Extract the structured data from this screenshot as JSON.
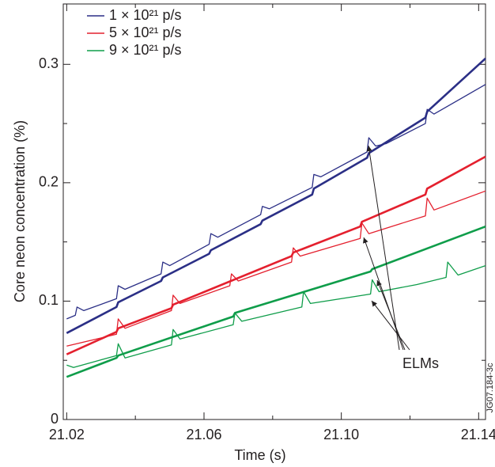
{
  "chart_data": {
    "type": "line",
    "x_label": "Time (s)",
    "y_label": "Core neon concentration (%)",
    "annotation": "ELMs",
    "figure_id": "JG07.184-3c",
    "xlim": [
      21.019,
      21.142
    ],
    "ylim": [
      0,
      0.351
    ],
    "xticks": [
      21.02,
      21.06,
      {
        "value": 21.1,
        "label": "21.10"
      },
      21.14
    ],
    "xminorticks": [
      21.04,
      21.08,
      21.12
    ],
    "yticks": [
      0,
      0.1,
      0.2,
      0.3
    ],
    "yminorticks": [
      0.05,
      0.15,
      0.25
    ],
    "legend": "upper left",
    "series": [
      {
        "name": "1 × 10²¹ p/s",
        "color": "#2b2f86",
        "width": 1.3,
        "x": [
          21.02,
          21.0225,
          21.023,
          21.025,
          21.0345,
          21.035,
          21.037,
          21.0475,
          21.048,
          21.05,
          21.0615,
          21.062,
          21.064,
          21.0765,
          21.077,
          21.079,
          21.0915,
          21.092,
          21.094,
          21.1075,
          21.108,
          21.11,
          21.113,
          21.1245,
          21.125,
          21.127,
          21.142
        ],
        "values": [
          0.085,
          0.088,
          0.095,
          0.092,
          0.102,
          0.113,
          0.11,
          0.123,
          0.133,
          0.13,
          0.148,
          0.157,
          0.154,
          0.173,
          0.18,
          0.178,
          0.196,
          0.207,
          0.205,
          0.226,
          0.238,
          0.231,
          0.233,
          0.25,
          0.262,
          0.258,
          0.283
        ]
      },
      {
        "color": "#2b2f86",
        "width": 2.6,
        "x": [
          21.02,
          21.0345,
          21.035,
          21.0475,
          21.048,
          21.0615,
          21.062,
          21.0765,
          21.077,
          21.0915,
          21.092,
          21.1075,
          21.108,
          21.1245,
          21.125,
          21.142
        ],
        "values": [
          0.073,
          0.095,
          0.099,
          0.117,
          0.12,
          0.14,
          0.143,
          0.165,
          0.168,
          0.19,
          0.195,
          0.221,
          0.225,
          0.255,
          0.26,
          0.305
        ]
      },
      {
        "name": "5 × 10²¹ p/s",
        "color": "#e4202e",
        "width": 1.3,
        "x": [
          21.02,
          21.0345,
          21.035,
          21.037,
          21.0505,
          21.051,
          21.053,
          21.0675,
          21.068,
          21.07,
          21.0855,
          21.086,
          21.088,
          21.1055,
          21.106,
          21.108,
          21.1245,
          21.125,
          21.127,
          21.142
        ],
        "values": [
          0.062,
          0.072,
          0.085,
          0.077,
          0.092,
          0.105,
          0.098,
          0.113,
          0.123,
          0.117,
          0.133,
          0.145,
          0.138,
          0.153,
          0.166,
          0.157,
          0.172,
          0.187,
          0.177,
          0.193
        ]
      },
      {
        "color": "#e4202e",
        "width": 2.6,
        "x": [
          21.02,
          21.0345,
          21.035,
          21.0505,
          21.051,
          21.0855,
          21.086,
          21.1055,
          21.106,
          21.1245,
          21.125,
          21.142
        ],
        "values": [
          0.055,
          0.074,
          0.077,
          0.094,
          0.097,
          0.138,
          0.141,
          0.163,
          0.167,
          0.19,
          0.195,
          0.222
        ]
      },
      {
        "name": "9 × 10²¹ p/s",
        "color": "#0f9d4a",
        "width": 1.3,
        "x": [
          21.02,
          21.022,
          21.0345,
          21.035,
          21.037,
          21.0505,
          21.051,
          21.053,
          21.0685,
          21.069,
          21.071,
          21.0885,
          21.089,
          21.091,
          21.1085,
          21.109,
          21.111,
          21.122,
          21.1305,
          21.131,
          21.134,
          21.142
        ],
        "values": [
          0.046,
          0.044,
          0.054,
          0.064,
          0.052,
          0.063,
          0.076,
          0.068,
          0.08,
          0.09,
          0.083,
          0.095,
          0.108,
          0.098,
          0.106,
          0.118,
          0.108,
          0.114,
          0.12,
          0.133,
          0.122,
          0.13
        ]
      },
      {
        "color": "#0f9d4a",
        "width": 2.6,
        "x": [
          21.02,
          21.0345,
          21.035,
          21.0685,
          21.069,
          21.1085,
          21.109,
          21.142
        ],
        "values": [
          0.036,
          0.052,
          0.054,
          0.087,
          0.09,
          0.125,
          0.127,
          0.163
        ]
      }
    ]
  }
}
